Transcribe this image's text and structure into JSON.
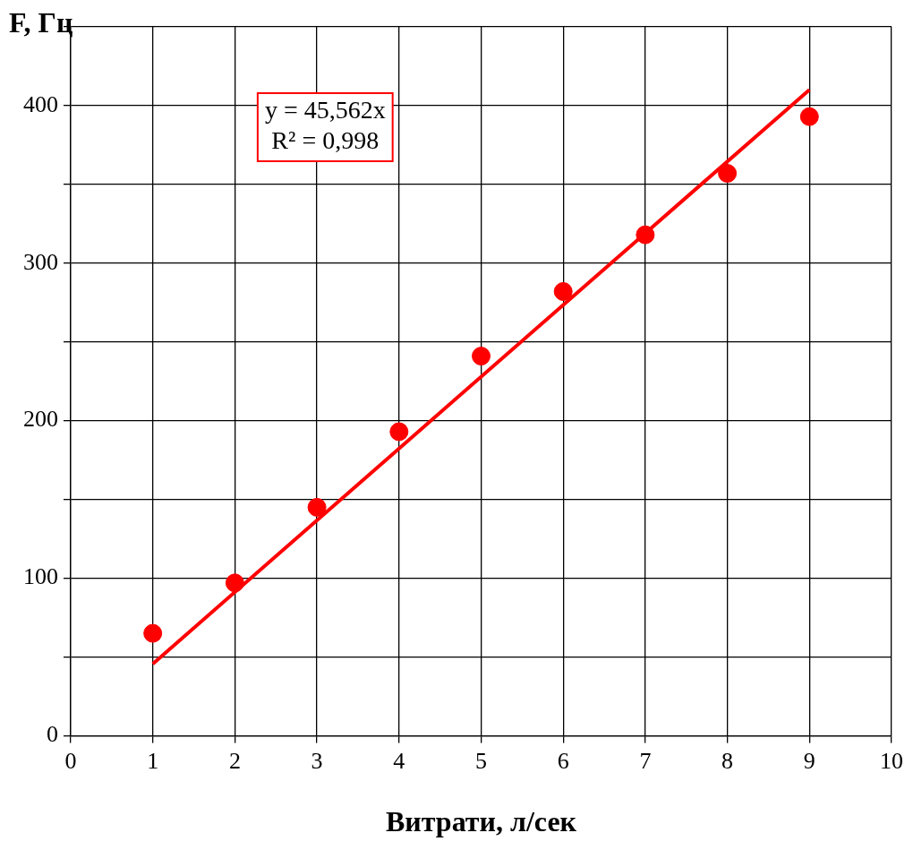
{
  "chart_data": {
    "type": "scatter",
    "xlabel": "Витрати, л/сек",
    "ylabel": "F, Гц",
    "xlim": [
      0,
      10
    ],
    "xticks": [
      0,
      1,
      2,
      3,
      4,
      5,
      6,
      7,
      8,
      9,
      10
    ],
    "ylim": [
      0,
      450
    ],
    "yticks": [
      0,
      {
        "value": 50,
        "label": null
      },
      100,
      {
        "value": 150,
        "label": null
      },
      200,
      {
        "value": 250,
        "label": null
      },
      300,
      {
        "value": 350,
        "label": null
      },
      400,
      {
        "value": 450,
        "label": null
      }
    ],
    "grid": true,
    "legend": false,
    "marker": "circle",
    "annotations": [
      "y = 45,562x",
      "R² = 0,998"
    ],
    "series": [
      {
        "color": "#ff0000",
        "x": [
          1,
          2,
          3,
          4,
          5,
          6,
          7,
          8,
          9
        ],
        "values": [
          65,
          97,
          145,
          193,
          241,
          282,
          318,
          357,
          393
        ]
      },
      {
        "type": "line",
        "color": "#ff0000",
        "line_style": "solid",
        "marker": "none",
        "x": [
          1,
          9
        ],
        "values": [
          45.6,
          410.1
        ]
      }
    ]
  }
}
